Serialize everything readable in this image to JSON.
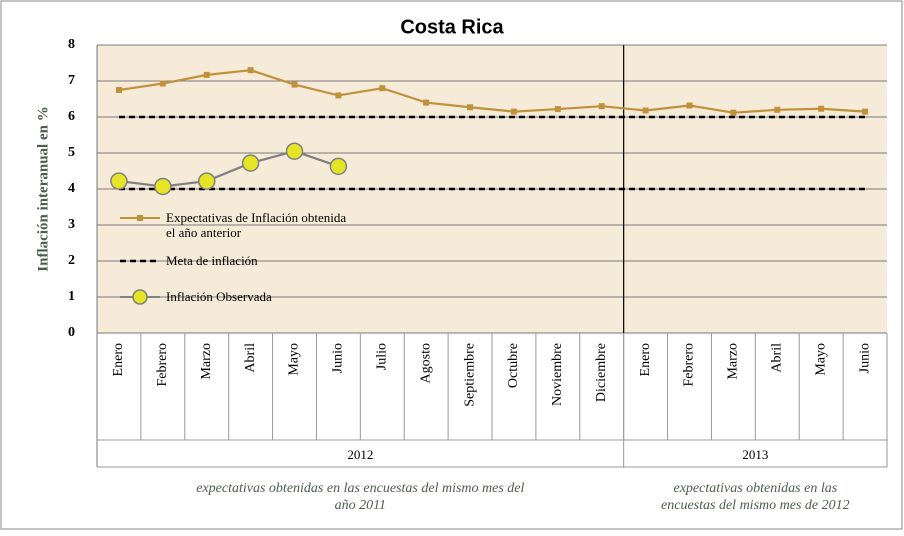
{
  "chart_data": {
    "type": "line",
    "title": "Costa Rica",
    "y_axis_title": "Inflación interanual en %",
    "categories": [
      "Enero",
      "Febrero",
      "Marzo",
      "Abril",
      "Mayo",
      "Junio",
      "Julio",
      "Agosto",
      "Septiembre",
      "Octubre",
      "Noviembre",
      "Diciembre",
      "Enero",
      "Febrero",
      "Marzo",
      "Abril",
      "Mayo",
      "Junio"
    ],
    "groups": [
      {
        "label": "2012",
        "span": 12,
        "note": "expectativas obtenidas en las encuestas del mismo mes del año 2011"
      },
      {
        "label": "2013",
        "span": 6,
        "note": "expectativas obtenidas en las encuestas  del mismo mes de 2012"
      }
    ],
    "series": [
      {
        "name": "Expectativas de Inflación obtenida el año anterior",
        "color": "#c0913a",
        "marker": "square",
        "values": [
          6.75,
          6.93,
          7.17,
          7.3,
          6.9,
          6.6,
          6.8,
          6.4,
          6.27,
          6.15,
          6.22,
          6.3,
          6.18,
          6.32,
          6.12,
          6.2,
          6.23,
          6.15
        ]
      },
      {
        "name": "Meta de inflación",
        "color": "#000000",
        "dashed": true,
        "values": [
          6,
          6,
          6,
          6,
          6,
          6,
          6,
          6,
          6,
          6,
          6,
          6,
          6,
          6,
          6,
          6,
          6,
          6
        ],
        "lower_values": [
          4,
          4,
          4,
          4,
          4,
          4,
          4,
          4,
          4,
          4,
          4,
          4,
          4,
          4,
          4,
          4,
          4,
          4
        ]
      },
      {
        "name": "Inflación Observada",
        "color": "#808080",
        "marker": "circle",
        "marker_color": "#e5e526",
        "values": [
          4.22,
          4.07,
          4.22,
          4.72,
          5.05,
          4.63,
          null,
          null,
          null,
          null,
          null,
          null,
          null,
          null,
          null,
          null,
          null,
          null
        ]
      }
    ],
    "ylim": [
      0,
      8
    ],
    "yticks": [
      0,
      1,
      2,
      3,
      4,
      5,
      6,
      7,
      8
    ],
    "grid": true
  }
}
